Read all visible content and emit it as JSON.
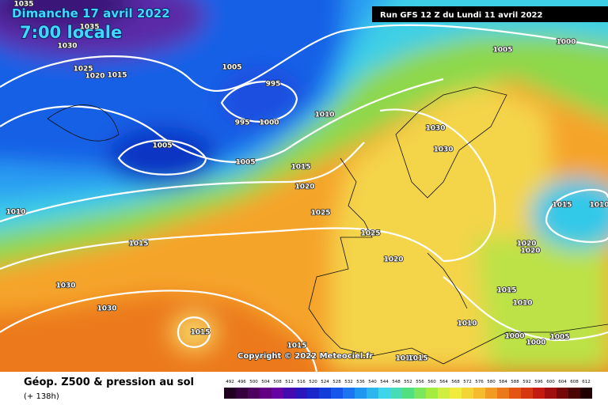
{
  "header": {
    "date": "Dimanche 17 avril 2022",
    "time": "7:00 locale",
    "run": "Run GFS 12 Z du Lundi 11 avril 2022"
  },
  "isobar_labels": [
    "1035",
    "1035",
    "1030",
    "1025",
    "1020",
    "1015",
    "1005",
    "995",
    "995",
    "1000",
    "1010",
    "1005",
    "1005",
    "1015",
    "1030",
    "1030",
    "1020",
    "1025",
    "1025",
    "1010",
    "1015",
    "1020",
    "1030",
    "1030",
    "1015",
    "1015",
    "1015",
    "1010",
    "1010",
    "1000",
    "1000",
    "1005",
    "1010",
    "1015",
    "1005",
    "1000",
    "1015",
    "1010",
    "1020",
    "1020"
  ],
  "copyright": "Copyright © 2022 Meteociel.fr",
  "legend": {
    "title": "Géop. Z500 & pression au sol",
    "lead": "(+ 138h)",
    "scale": [
      492,
      496,
      500,
      504,
      508,
      512,
      516,
      520,
      524,
      528,
      532,
      536,
      540,
      544,
      548,
      552,
      556,
      560,
      564,
      568,
      572,
      576,
      580,
      584,
      588,
      592,
      596,
      600,
      604,
      608,
      612
    ]
  }
}
